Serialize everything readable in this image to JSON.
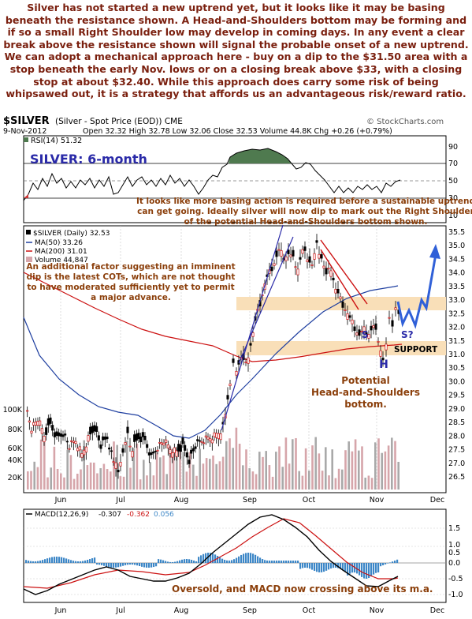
{
  "commentary": "Silver has not started a new uptrend yet, but it looks like it may be basing beneath the resistance shown. A Head-and-Shoulders bottom may be forming and if so a small Right Shoulder low may develop in coming days. In any event a clear break above the resistance shown will signal the probable onset of a new uptrend. We can adopt a mechanical approach here - buy on a dip to the $31.50 area with a stop beneath the early Nov. lows or on a closing break above $33, with a closing stop at about $32.40. While this approach does carry some risk of being whipsawed out, it is a strategy that affords us an advantageous risk/reward ratio.",
  "header": {
    "symbol": "$SILVER",
    "description": "(Silver - Spot Price (EOD)) CME",
    "date": "9-Nov-2012",
    "ohlc": "Open 32.32  High 32.78  Low 32.06  Close 32.53  Volume 44.8K  Chg +0.26 (+0.79%)",
    "source": "© StockCharts.com"
  },
  "rsi_panel": {
    "label": "RSI(14) 51.32",
    "title": "SILVER: 6-month",
    "ticks": [
      "90",
      "70",
      "50",
      "30",
      "10"
    ]
  },
  "price_panel": {
    "legend": [
      "$SILVER (Daily) 32.53",
      "MA(50) 33.26",
      "MA(200) 31.01",
      "Volume 44,847"
    ],
    "price_ticks": [
      "35.5",
      "35.0",
      "34.5",
      "34.0",
      "33.5",
      "33.0",
      "32.5",
      "32.0",
      "31.5",
      "31.0",
      "30.5",
      "30.0",
      "29.5",
      "29.0",
      "28.5",
      "28.0",
      "27.5",
      "27.0",
      "26.5"
    ],
    "volume_ticks": [
      "100K",
      "80K",
      "60K",
      "40K",
      "20K"
    ],
    "month_labels": [
      "Jun",
      "Jul",
      "Aug",
      "Sep",
      "Oct",
      "Nov",
      "Dec"
    ],
    "annotation_top": [
      "It looks like more basing action is required before a sustainable uptrend",
      "can get going. Ideally silver will now dip to mark out the Right Shoulder",
      "of the potential Head-and-Shoulders bottom shown."
    ],
    "annotation_left": [
      "An additional factor suggesting an imminent",
      "dip is the latest COTs, which are not thought",
      "to have moderated sufficiently yet to permit",
      "a major advance."
    ],
    "label_s_left": "S",
    "label_s_right": "S?",
    "label_h": "H",
    "label_support": "SUPPORT",
    "annotation_hs": [
      "Potential",
      "Head-and-Shoulders",
      "bottom."
    ]
  },
  "macd_panel": {
    "label": "MACD(12,26,9)",
    "macd": "-0.307",
    "signal": "-0.362",
    "hist": "0.056",
    "ticks": [
      "1.5",
      "1.0",
      "0.5",
      "0.0",
      "-0.5",
      "-1.0"
    ],
    "annotation": "Oversold, and MACD now crossing above its m.a.",
    "month_labels": [
      "Jun",
      "Jul",
      "Aug",
      "Sep",
      "Oct",
      "Nov",
      "Dec"
    ]
  },
  "colors": {
    "text_brown": "#7a1f0e",
    "note_brown": "#8b3f0b",
    "title_blue": "#2a2aa8",
    "band": "#f9dfb8",
    "ma50": "#1f3fa0",
    "ma200": "#cc1111",
    "volume": "#d6a5aa",
    "volume_grey": "#a9a9a9",
    "rsi_fill": "#4f7a4f",
    "macd_hist": "#3d87c7",
    "projection": "#3060d8"
  },
  "chart_data": [
    {
      "type": "line",
      "name": "RSI(14)",
      "x": [
        "Jun",
        "Jul",
        "Aug",
        "Sep",
        "Oct",
        "Nov"
      ],
      "values": [
        34,
        48,
        41,
        77,
        63,
        51.32
      ],
      "ylim": [
        0,
        100
      ],
      "levels": [
        30,
        50,
        70
      ]
    },
    {
      "type": "line",
      "name": "$SILVER (Daily)",
      "x": [
        "Jun",
        "Jul",
        "Aug",
        "Sep",
        "Oct",
        "Nov"
      ],
      "values": [
        27.8,
        27.3,
        27.3,
        33.0,
        34.7,
        32.53
      ],
      "ylim": [
        26.2,
        35.7
      ],
      "series": [
        {
          "name": "MA(50)",
          "values": [
            28.9,
            27.9,
            27.5,
            29.1,
            32.7,
            33.26
          ]
        },
        {
          "name": "MA(200)",
          "values": [
            32.4,
            30.9,
            30.1,
            30.2,
            30.8,
            31.01
          ]
        }
      ]
    },
    {
      "type": "bar",
      "name": "Volume",
      "categories": [
        "Jun",
        "Jul",
        "Aug",
        "Sep",
        "Oct",
        "Nov"
      ],
      "values": [
        45000,
        30000,
        40000,
        55000,
        45000,
        44847
      ]
    },
    {
      "type": "line",
      "name": "MACD(12,26,9)",
      "x": [
        "Jun",
        "Jul",
        "Aug",
        "Sep",
        "Oct",
        "Nov"
      ],
      "values": [
        -0.7,
        -0.2,
        -0.5,
        0.9,
        1.2,
        -0.307
      ],
      "series": [
        {
          "name": "signal",
          "values": [
            -0.6,
            -0.3,
            -0.4,
            0.5,
            1.3,
            -0.362
          ]
        },
        {
          "name": "histogram",
          "values": [
            -0.1,
            0.1,
            -0.1,
            0.4,
            -0.1,
            0.056
          ]
        }
      ],
      "ylim": [
        -1.2,
        1.7
      ]
    }
  ]
}
